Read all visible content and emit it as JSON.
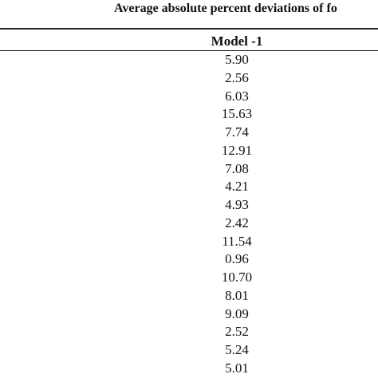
{
  "table": {
    "title": "Average absolute percent deviations of fo",
    "header": [
      "Model -1"
    ],
    "rows": [
      [
        "5.90"
      ],
      [
        "2.56"
      ],
      [
        "6.03"
      ],
      [
        "15.63"
      ],
      [
        "7.74"
      ],
      [
        "12.91"
      ],
      [
        "7.08"
      ],
      [
        "4.21"
      ],
      [
        "4.93"
      ],
      [
        "2.42"
      ],
      [
        "11.54"
      ],
      [
        "0.96"
      ],
      [
        "10.70"
      ],
      [
        "8.01"
      ],
      [
        "9.09"
      ],
      [
        "2.52"
      ],
      [
        "5.24"
      ],
      [
        "5.01"
      ]
    ]
  }
}
